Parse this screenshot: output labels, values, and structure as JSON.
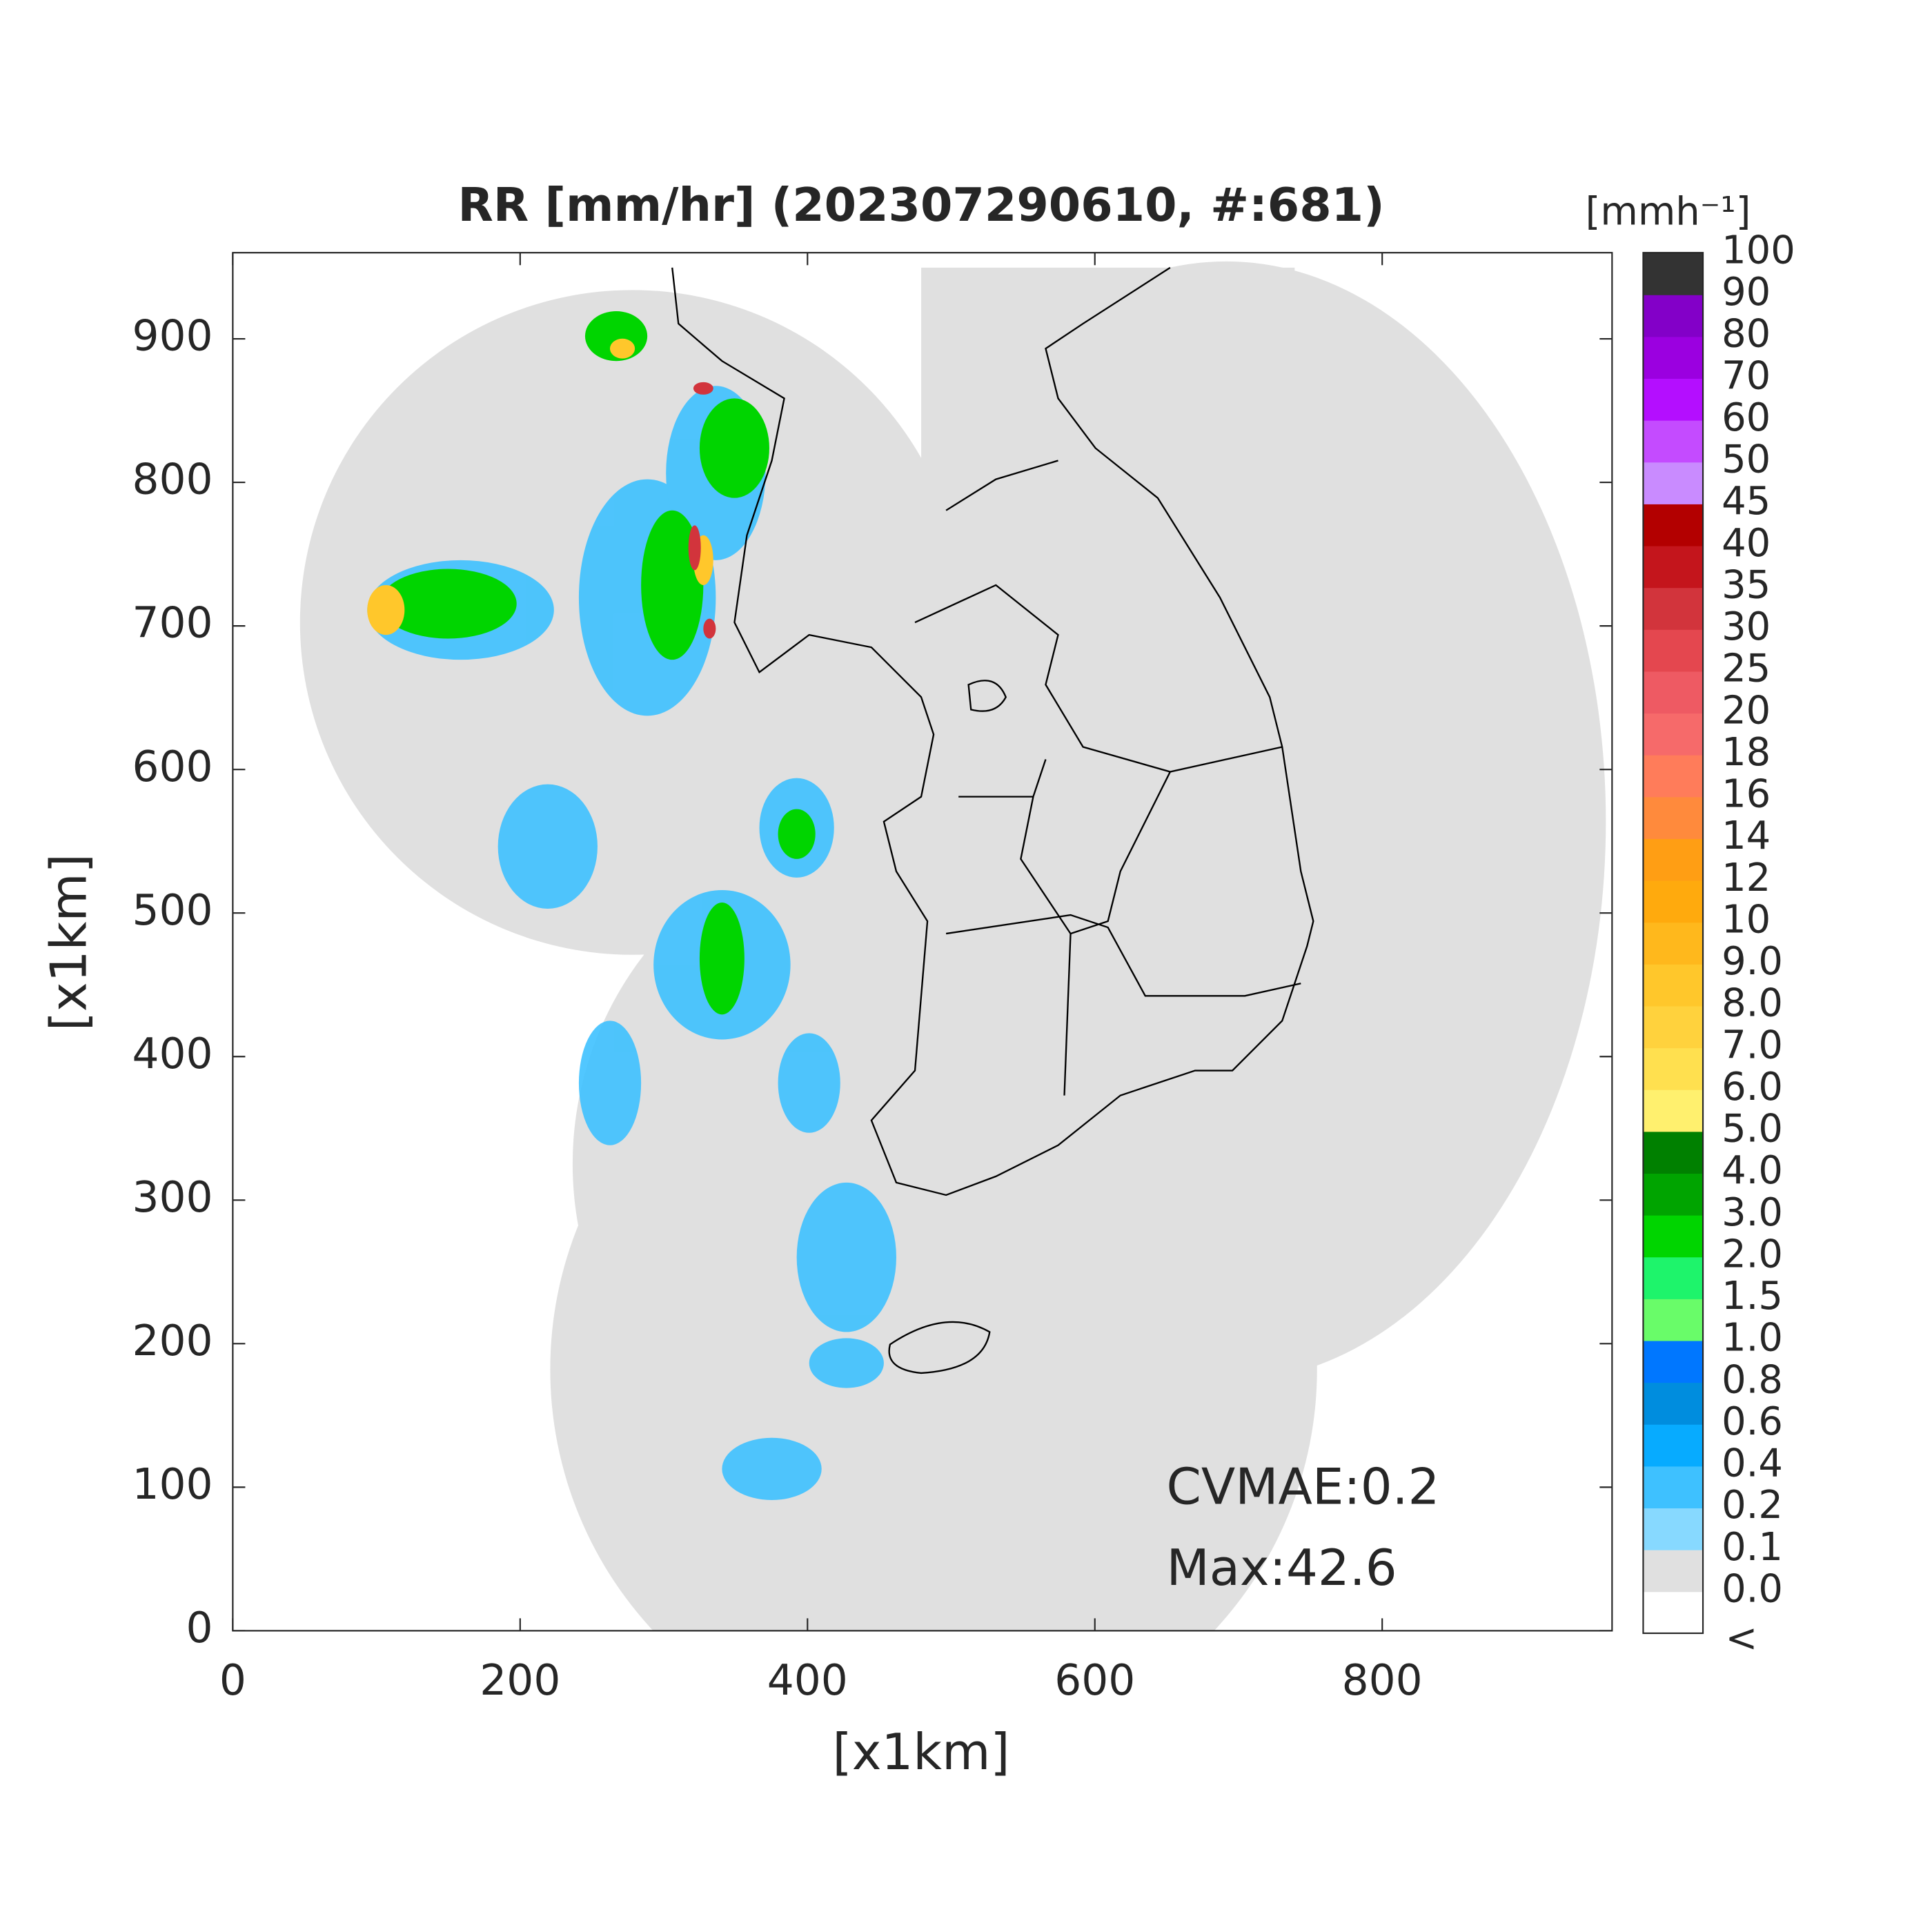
{
  "chart_data": {
    "type": "radar-map",
    "title": "RR [mm/hr] (202307290610, #:681)",
    "xlabel": "[x1km]",
    "ylabel": "[x1km]",
    "xlim": [
      0,
      960
    ],
    "ylim": [
      0,
      960
    ],
    "xticks": [
      0,
      200,
      400,
      600,
      800
    ],
    "yticks": [
      0,
      100,
      200,
      300,
      400,
      500,
      600,
      700,
      800,
      900
    ],
    "colorbar": {
      "unit": "[mmh⁻¹]",
      "under_label": "<",
      "levels": [
        {
          "value": 0,
          "label": "0.0"
        },
        0.1,
        0.2,
        0.4,
        0.6,
        0.8,
        {
          "value": 1,
          "label": "1.0"
        },
        1.5,
        {
          "value": 2,
          "label": "2.0"
        },
        {
          "value": 3,
          "label": "3.0"
        },
        {
          "value": 4,
          "label": "4.0"
        },
        {
          "value": 5,
          "label": "5.0"
        },
        {
          "value": 6,
          "label": "6.0"
        },
        {
          "value": 7,
          "label": "7.0"
        },
        {
          "value": 8,
          "label": "8.0"
        },
        {
          "value": 9,
          "label": "9.0"
        },
        10,
        12,
        14,
        16,
        18,
        20,
        25,
        30,
        35,
        40,
        45,
        50,
        60,
        70,
        80,
        90,
        100
      ],
      "colors": [
        "#ffffff",
        "#e0e0e0",
        "#87d9ff",
        "#3ec1ff",
        "#07abff",
        "#008dde",
        "#0077ff",
        "#69fc69",
        "#1ef46b",
        "#00d500",
        "#00a400",
        "#008000",
        "#fff06e",
        "#ffe04f",
        "#ffd23d",
        "#ffc72b",
        "#ffb81c",
        "#ffaa0d",
        "#ff9e14",
        "#ff8a3c",
        "#ff7c5a",
        "#f66a6a",
        "#ee5a63",
        "#e4474f",
        "#d2343c",
        "#c4151c",
        "#b30000",
        "#c98bff",
        "#c44bff",
        "#b40eff",
        "#9b00e0",
        "#8300c8",
        "#333333"
      ]
    },
    "annotations": [
      "CVMAE:0.2",
      "Max:42.6"
    ]
  }
}
